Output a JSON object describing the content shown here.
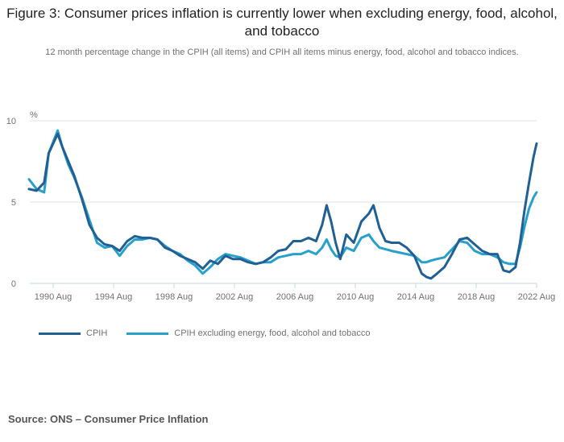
{
  "chart_data": {
    "type": "line",
    "title": "Figure 3: Consumer prices inflation is currently lower when excluding energy, food, alcohol, and tobacco",
    "subtitle": "12 month percentage change in the CPIH (all items) and CPIH all items minus energy, food, alcohol and tobacco indices.",
    "ylabel": "%",
    "xlabel": "",
    "ylim": [
      0,
      10
    ],
    "yticks": [
      0,
      5,
      10
    ],
    "xticks": [
      "1990 Aug",
      "1994 Aug",
      "1998 Aug",
      "2002 Aug",
      "2006 Aug",
      "2010 Aug",
      "2014 Aug",
      "2018 Aug",
      "2022 Aug"
    ],
    "xtick_years": [
      1990.6,
      1994.6,
      1998.6,
      2002.6,
      2006.6,
      2010.6,
      2014.6,
      2018.6,
      2022.6
    ],
    "xlim": [
      1989.0,
      2022.6
    ],
    "grid": true,
    "legend_position": "bottom-left",
    "x": [
      1989.0,
      1989.5,
      1990.0,
      1990.3,
      1990.6,
      1990.9,
      1991.2,
      1991.6,
      1992.0,
      1992.5,
      1993.0,
      1993.5,
      1994.0,
      1994.5,
      1995.0,
      1995.5,
      1996.0,
      1996.5,
      1997.0,
      1997.5,
      1998.0,
      1998.5,
      1999.0,
      1999.5,
      2000.0,
      2000.5,
      2001.0,
      2001.5,
      2002.0,
      2002.5,
      2003.0,
      2003.5,
      2004.0,
      2004.5,
      2005.0,
      2005.5,
      2006.0,
      2006.5,
      2007.0,
      2007.5,
      2008.0,
      2008.4,
      2008.7,
      2009.0,
      2009.3,
      2009.6,
      2010.0,
      2010.5,
      2011.0,
      2011.5,
      2011.8,
      2012.2,
      2012.6,
      2013.0,
      2013.5,
      2014.0,
      2014.5,
      2015.0,
      2015.3,
      2015.6,
      2016.0,
      2016.5,
      2017.0,
      2017.5,
      2018.0,
      2018.5,
      2019.0,
      2019.5,
      2020.0,
      2020.4,
      2020.8,
      2021.2,
      2021.5,
      2021.8,
      2022.1,
      2022.4,
      2022.6
    ],
    "series": [
      {
        "name": "CPIH",
        "color": "#206095",
        "values": [
          5.8,
          5.7,
          6.2,
          8.0,
          8.6,
          9.2,
          8.4,
          7.5,
          6.6,
          5.2,
          3.6,
          2.8,
          2.4,
          2.3,
          2.0,
          2.6,
          2.9,
          2.8,
          2.8,
          2.7,
          2.2,
          2.0,
          1.7,
          1.5,
          1.3,
          0.9,
          1.4,
          1.2,
          1.7,
          1.5,
          1.5,
          1.3,
          1.2,
          1.3,
          1.6,
          2.0,
          2.1,
          2.6,
          2.6,
          2.8,
          2.6,
          3.6,
          4.8,
          3.8,
          2.5,
          1.5,
          3.0,
          2.5,
          3.8,
          4.3,
          4.8,
          3.4,
          2.6,
          2.5,
          2.5,
          2.2,
          1.7,
          0.6,
          0.4,
          0.3,
          0.6,
          1.0,
          1.8,
          2.7,
          2.8,
          2.4,
          2.0,
          1.8,
          1.8,
          0.8,
          0.7,
          1.0,
          2.5,
          4.5,
          6.2,
          7.8,
          8.6
        ]
      },
      {
        "name": "CPIH excluding energy, food, alcohol and tobacco",
        "color": "#27a0cc",
        "values": [
          6.4,
          5.8,
          5.6,
          8.0,
          8.7,
          9.4,
          8.4,
          7.3,
          6.5,
          5.3,
          3.9,
          2.5,
          2.2,
          2.3,
          1.7,
          2.3,
          2.7,
          2.7,
          2.8,
          2.7,
          2.3,
          2.0,
          1.8,
          1.4,
          1.1,
          0.6,
          1.0,
          1.5,
          1.8,
          1.7,
          1.6,
          1.4,
          1.2,
          1.3,
          1.3,
          1.6,
          1.7,
          1.8,
          1.8,
          2.0,
          1.8,
          2.2,
          2.7,
          2.1,
          1.7,
          1.6,
          2.2,
          2.0,
          2.8,
          3.0,
          2.6,
          2.2,
          2.1,
          2.0,
          1.9,
          1.8,
          1.7,
          1.3,
          1.3,
          1.4,
          1.5,
          1.6,
          2.1,
          2.6,
          2.5,
          2.0,
          1.8,
          1.8,
          1.6,
          1.3,
          1.2,
          1.2,
          2.2,
          3.5,
          4.6,
          5.3,
          5.6
        ]
      }
    ]
  },
  "source": "Source: ONS – Consumer Price Inflation"
}
